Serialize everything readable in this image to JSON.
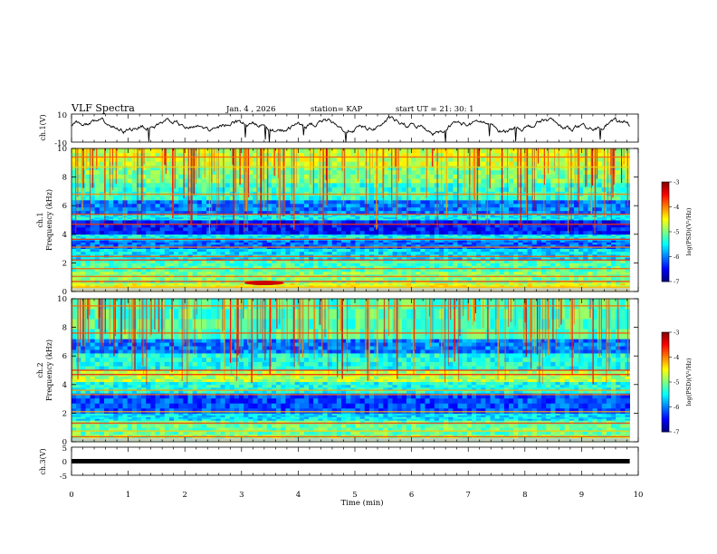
{
  "header": {
    "title": "VLF Spectra",
    "date": "Jan. 4 , 2026",
    "station": "station= KAP",
    "start": "start UT =  21: 30: 1"
  },
  "chart_data": [
    {
      "type": "line",
      "name": "ch.1 waveform",
      "ylabel": "ch.1(V)",
      "ylim": [
        -10,
        10
      ],
      "yticks": [
        10,
        -10
      ],
      "baseline_v": 1.5,
      "amplitude_v": 6
    },
    {
      "type": "heatmap",
      "name": "ch.1 spectrogram",
      "ylabel_line1": "ch.1",
      "ylabel_line2": "Frequency (kHz)",
      "ylim": [
        0,
        10
      ],
      "yticks": [
        0,
        2,
        4,
        6,
        8,
        10
      ],
      "xlim": [
        0,
        9.85
      ],
      "color_range": [
        -7,
        -3
      ],
      "colorbar_ticks": [
        -3,
        -4,
        -5,
        -6,
        -7
      ],
      "colorbar_label": "log(PSD)(V²/Hz)",
      "bands": [
        {
          "f0": 0.0,
          "f1": 0.6,
          "v": -4.6
        },
        {
          "f0": 0.6,
          "f1": 1.4,
          "v": -5.0
        },
        {
          "f0": 1.4,
          "f1": 2.2,
          "v": -5.2
        },
        {
          "f0": 2.2,
          "f1": 3.0,
          "v": -5.6
        },
        {
          "f0": 3.0,
          "f1": 3.6,
          "v": -6.1
        },
        {
          "f0": 3.6,
          "f1": 4.0,
          "v": -5.5
        },
        {
          "f0": 4.0,
          "f1": 5.0,
          "v": -6.4
        },
        {
          "f0": 5.0,
          "f1": 5.4,
          "v": -5.5
        },
        {
          "f0": 5.4,
          "f1": 6.4,
          "v": -6.0
        },
        {
          "f0": 6.4,
          "f1": 7.6,
          "v": -5.3
        },
        {
          "f0": 7.6,
          "f1": 8.8,
          "v": -5.0
        },
        {
          "f0": 8.8,
          "f1": 10.0,
          "v": -4.7
        }
      ],
      "lines_khz": [
        0.3,
        0.7,
        1.05,
        1.6,
        2.2,
        2.45,
        3.1,
        3.65,
        4.7,
        5.4,
        6.8,
        8.7,
        9.4
      ],
      "hotspot": {
        "t": 3.4,
        "f": 0.6,
        "v": -3.3
      }
    },
    {
      "type": "heatmap",
      "name": "ch.2 spectrogram",
      "ylabel_line1": "ch.2",
      "ylabel_line2": "Frequency (kHz)",
      "ylim": [
        0,
        10
      ],
      "yticks": [
        0,
        2,
        4,
        6,
        8,
        10
      ],
      "xlim": [
        0,
        9.85
      ],
      "color_range": [
        -7,
        -3
      ],
      "colorbar_ticks": [
        -3,
        -4,
        -5,
        -6,
        -7
      ],
      "colorbar_label": "log(PSD)(V²/Hz)",
      "bands": [
        {
          "f0": 0.0,
          "f1": 0.5,
          "v": -4.9
        },
        {
          "f0": 0.5,
          "f1": 1.5,
          "v": -5.1
        },
        {
          "f0": 1.5,
          "f1": 2.0,
          "v": -5.6
        },
        {
          "f0": 2.0,
          "f1": 3.4,
          "v": -6.2
        },
        {
          "f0": 3.4,
          "f1": 4.2,
          "v": -5.4
        },
        {
          "f0": 4.2,
          "f1": 5.0,
          "v": -4.8
        },
        {
          "f0": 5.0,
          "f1": 6.2,
          "v": -5.4
        },
        {
          "f0": 6.2,
          "f1": 7.2,
          "v": -6.0
        },
        {
          "f0": 7.2,
          "f1": 10.0,
          "v": -5.2
        }
      ],
      "lines_khz": [
        0.35,
        0.75,
        1.3,
        2.1,
        3.3,
        3.6,
        4.7,
        5.0,
        7.6,
        9.5
      ],
      "hotspot": null
    },
    {
      "type": "line",
      "name": "ch.3 waveform",
      "ylabel": "ch.3(V)",
      "ylim": [
        -5,
        5
      ],
      "yticks": [
        5,
        0,
        -5
      ],
      "baseline_v": 0,
      "amplitude_v": 0.6
    }
  ],
  "time_axis": {
    "label": "Time (min)",
    "xlim": [
      0,
      10
    ],
    "ticks": [
      "0",
      "1",
      "2",
      "3",
      "4",
      "5",
      "6",
      "7",
      "8",
      "9",
      "10"
    ]
  },
  "colors": {
    "axis": "#000000",
    "trace": "#000000"
  }
}
